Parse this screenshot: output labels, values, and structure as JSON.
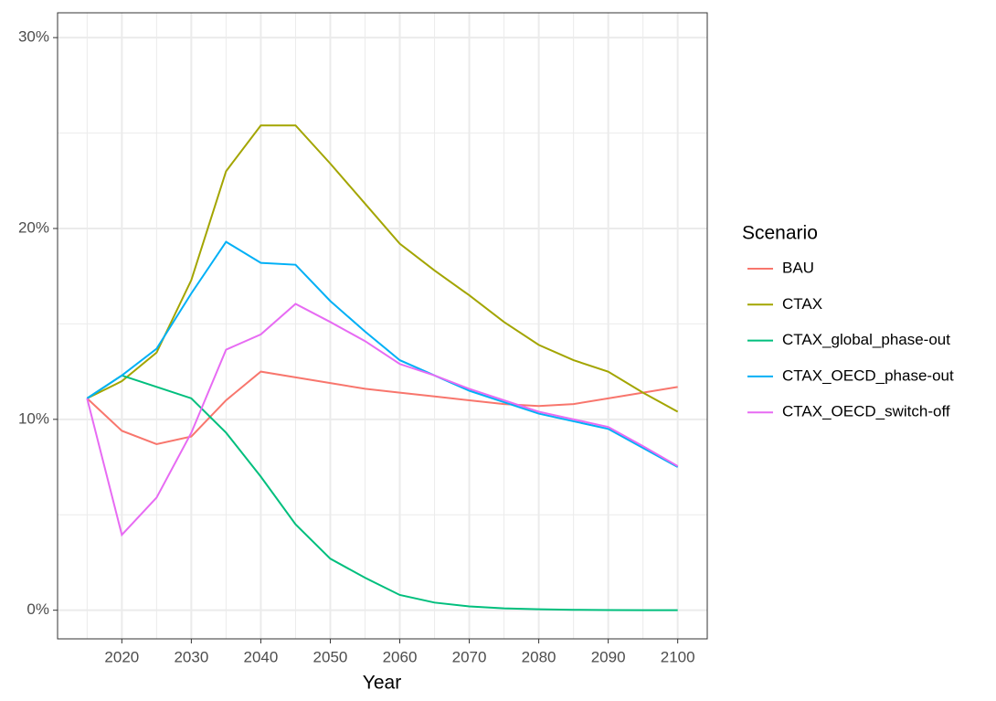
{
  "chart_data": {
    "type": "line",
    "x_label": "Year",
    "legend_title": "Scenario",
    "x": [
      2015,
      2020,
      2025,
      2030,
      2035,
      2040,
      2045,
      2050,
      2055,
      2060,
      2065,
      2070,
      2075,
      2080,
      2085,
      2090,
      2095,
      2100
    ],
    "series": [
      {
        "name": "BAU",
        "color": "#F8766D",
        "values": [
          11.1,
          9.4,
          8.7,
          9.1,
          11.0,
          12.5,
          12.2,
          11.9,
          11.6,
          11.4,
          11.2,
          11.0,
          10.8,
          10.7,
          10.8,
          11.1,
          11.4,
          11.7
        ]
      },
      {
        "name": "CTAX",
        "color": "#A3A500",
        "values": [
          11.1,
          12.0,
          13.5,
          17.3,
          23.0,
          25.4,
          25.4,
          23.4,
          21.3,
          19.2,
          17.8,
          16.5,
          15.1,
          13.9,
          13.1,
          12.5,
          11.4,
          10.4
        ]
      },
      {
        "name": "CTAX_global_phase-out",
        "color": "#00BF7D",
        "values": [
          11.1,
          12.3,
          11.7,
          11.1,
          9.3,
          7.0,
          4.5,
          2.7,
          1.7,
          0.8,
          0.4,
          0.2,
          0.1,
          0.05,
          0.02,
          0.01,
          0,
          0
        ]
      },
      {
        "name": "CTAX_OECD_phase-out",
        "color": "#00B0F6",
        "values": [
          11.1,
          12.3,
          13.7,
          16.6,
          19.3,
          18.2,
          18.1,
          16.2,
          14.6,
          13.1,
          12.3,
          11.5,
          10.9,
          10.3,
          9.9,
          9.5,
          8.5,
          7.5
        ]
      },
      {
        "name": "CTAX_OECD_switch-off",
        "color": "#E76BF3",
        "values": [
          11.1,
          3.95,
          5.9,
          9.3,
          13.65,
          14.45,
          16.05,
          15.1,
          14.1,
          12.9,
          12.3,
          11.6,
          11.0,
          10.4,
          10.0,
          9.6,
          8.6,
          7.55
        ]
      }
    ],
    "xlim": [
      2010.75,
      2104.25
    ],
    "ylim": [
      -1.5,
      31.3
    ],
    "xticks": [
      2020,
      2030,
      2040,
      2050,
      2060,
      2070,
      2080,
      2090,
      2100
    ],
    "yticks": [
      {
        "value": 0,
        "label": "0%"
      },
      {
        "value": 10,
        "label": "10%"
      },
      {
        "value": 20,
        "label": "20%"
      },
      {
        "value": 30,
        "label": "30%"
      }
    ],
    "x_minor_ticks": [
      2015,
      2025,
      2035,
      2045,
      2055,
      2065,
      2075,
      2085,
      2095
    ],
    "y_minor_ticks": [
      5,
      15,
      25
    ],
    "grid": true,
    "legend_position": "right"
  }
}
